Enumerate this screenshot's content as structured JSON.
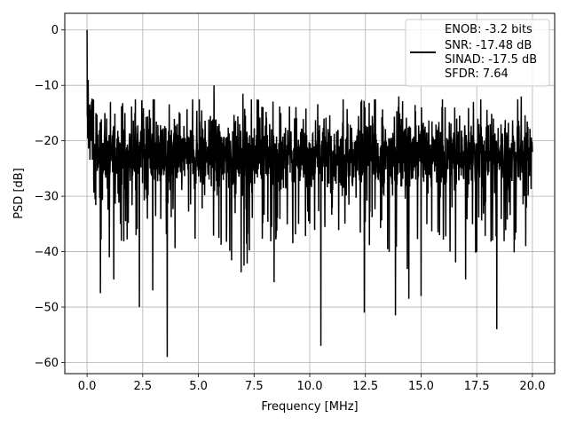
{
  "chart_data": {
    "type": "line",
    "xlabel": "Frequency [MHz]",
    "ylabel": "PSD [dB]",
    "xlim": [
      -1,
      21
    ],
    "ylim": [
      -62,
      3
    ],
    "x_ticks": [
      0.0,
      2.5,
      5.0,
      7.5,
      10.0,
      12.5,
      15.0,
      17.5,
      20.0
    ],
    "x_tick_labels": [
      "0.0",
      "2.5",
      "5.0",
      "7.5",
      "10.0",
      "12.5",
      "15.0",
      "17.5",
      "20.0"
    ],
    "y_ticks": [
      0,
      -10,
      -20,
      -30,
      -40,
      -50,
      -60
    ],
    "y_tick_labels": [
      "0",
      "−10",
      "−20",
      "−30",
      "−40",
      "−50",
      "−60"
    ],
    "grid": true,
    "legend_position": "top-right",
    "legend_entries": [
      "ENOB: -3.2 bits",
      "SNR: -17.48 dB",
      "SINAD: -17.5 dB",
      "SFDR: 7.64"
    ],
    "series": [
      {
        "color": "#000000",
        "x": [
          0.0,
          0.05,
          0.1,
          0.2,
          0.3,
          0.4,
          0.55,
          0.6,
          0.8,
          1.0,
          1.05,
          1.2,
          1.5,
          1.7,
          2.2,
          2.35,
          2.5,
          2.95,
          3.6,
          4.7,
          5.2,
          5.7,
          6.35,
          7.0,
          7.05,
          7.3,
          7.8,
          8.4,
          8.7,
          9.5,
          10.5,
          11.5,
          12.3,
          12.45,
          13.0,
          13.85,
          14.0,
          14.45,
          14.9,
          15.0,
          15.3,
          16.3,
          16.6,
          17.0,
          17.35,
          17.5,
          18.1,
          18.4,
          19.5,
          19.7,
          20.0
        ],
        "y": [
          0.0,
          -9.0,
          -20.0,
          -13.0,
          -27.0,
          -15.0,
          -22.0,
          -47.5,
          -15.0,
          -41.0,
          -13.0,
          -45.0,
          -35.0,
          -15.0,
          -37.0,
          -50.0,
          -15.0,
          -47.0,
          -59.0,
          -22.0,
          -18.0,
          -10.0,
          -24.0,
          -11.5,
          -42.5,
          -19.0,
          -26.0,
          -45.5,
          -15.0,
          -35.0,
          -57.0,
          -12.5,
          -13.0,
          -51.0,
          -22.0,
          -51.5,
          -12.0,
          -48.5,
          -19.0,
          -48.0,
          -20.0,
          -40.0,
          -16.0,
          -45.0,
          -13.0,
          -40.0,
          -17.0,
          -54.0,
          -12.0,
          -39.0,
          -22.0
        ]
      }
    ]
  }
}
